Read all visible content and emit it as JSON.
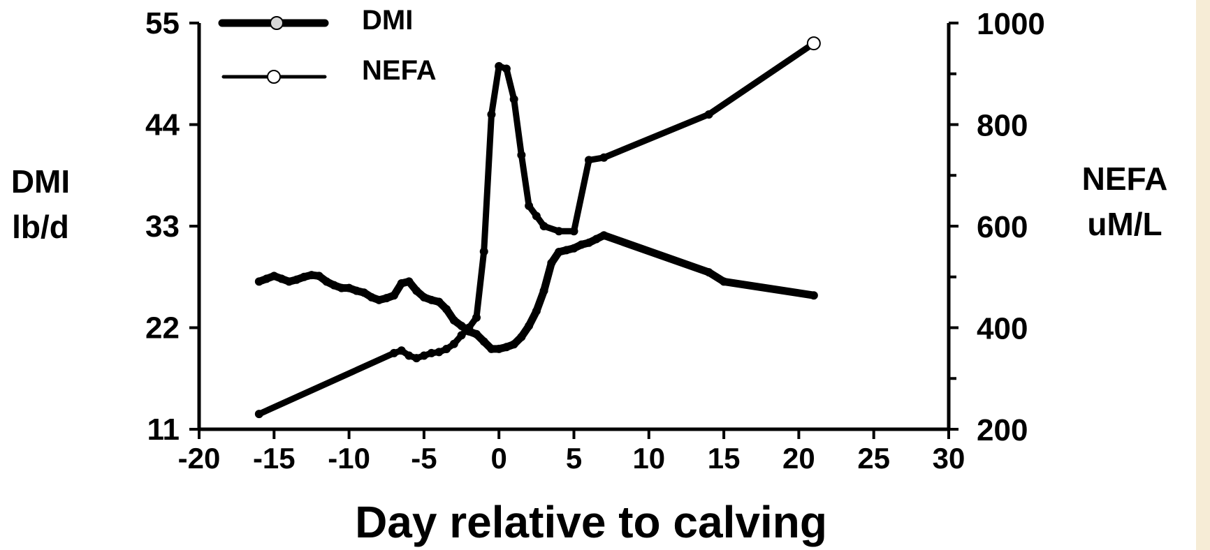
{
  "colors": {
    "background": "#ffffff",
    "ink": "#000000",
    "edge_band": "#f6ecd6",
    "dmi_marker": "#d8d8d8",
    "nefa_marker": "#ffffff"
  },
  "chart_data": {
    "type": "line",
    "xlabel": "Day relative to calving",
    "y_left_label": [
      "DMI",
      "lb/d"
    ],
    "y_right_label": [
      "NEFA",
      "uM/L"
    ],
    "xlim": [
      -20,
      30
    ],
    "ylim_left": [
      11,
      55
    ],
    "ylim_right": [
      200,
      1000
    ],
    "x_ticks": [
      -20,
      -15,
      -10,
      -5,
      0,
      5,
      10,
      15,
      20,
      25,
      30
    ],
    "y_left_ticks": [
      11,
      22,
      33,
      44,
      55
    ],
    "y_right_ticks": [
      200,
      400,
      600,
      800,
      1000
    ],
    "y_right_minor_ticks": [
      300,
      500,
      700,
      900
    ],
    "legend_position": "top-left",
    "grid": false,
    "series": [
      {
        "name": "DMI",
        "axis": "left",
        "style": "thick",
        "x": [
          -16,
          -15.5,
          -15,
          -14.5,
          -14,
          -13.5,
          -13,
          -12.5,
          -12,
          -11.5,
          -11,
          -10.5,
          -10,
          -9.5,
          -9,
          -8.5,
          -8,
          -7.5,
          -7,
          -6.5,
          -6,
          -5.5,
          -5,
          -4.5,
          -4,
          -3.5,
          -3,
          -2.5,
          -2,
          -1.5,
          -1,
          -0.5,
          0,
          0.5,
          1,
          1.5,
          2,
          2.5,
          3,
          3.5,
          4,
          4.5,
          5,
          5.5,
          6,
          6.5,
          7,
          14,
          15,
          21
        ],
        "y": [
          27,
          27.3,
          27.6,
          27.3,
          27,
          27.2,
          27.5,
          27.7,
          27.6,
          27,
          26.6,
          26.3,
          26.3,
          26,
          25.8,
          25.3,
          25,
          25.2,
          25.5,
          26.8,
          27,
          26,
          25.3,
          25,
          24.8,
          24,
          22.8,
          22.2,
          21.6,
          21.3,
          20.5,
          19.7,
          19.7,
          19.9,
          20.2,
          21,
          22.2,
          23.8,
          26,
          29,
          30.2,
          30.4,
          30.6,
          31,
          31.2,
          31.6,
          32,
          28,
          27,
          25.5
        ]
      },
      {
        "name": "NEFA",
        "axis": "right",
        "style": "thin",
        "x": [
          -16,
          -7,
          -6.5,
          -6,
          -5.5,
          -5,
          -4.5,
          -4,
          -3.5,
          -3,
          -2.5,
          -2,
          -1.5,
          -1,
          -0.5,
          0,
          0.5,
          1,
          1.5,
          2,
          2.5,
          3,
          4,
          5,
          6,
          7,
          14,
          21
        ],
        "y": [
          230,
          350,
          355,
          345,
          340,
          345,
          350,
          352,
          358,
          368,
          385,
          400,
          420,
          550,
          820,
          915,
          910,
          850,
          740,
          640,
          620,
          600,
          590,
          590,
          730,
          735,
          820,
          960
        ]
      }
    ]
  }
}
